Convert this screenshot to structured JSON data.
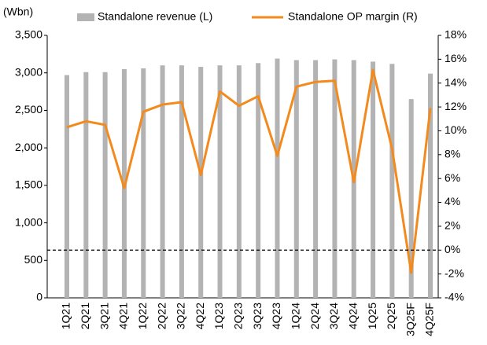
{
  "chart_data": {
    "type": "bar_line",
    "unit_label": "(Wbn)",
    "categories": [
      "1Q21",
      "2Q21",
      "3Q21",
      "4Q21",
      "1Q22",
      "2Q22",
      "3Q22",
      "4Q22",
      "1Q23",
      "2Q23",
      "3Q23",
      "4Q23",
      "1Q24",
      "2Q24",
      "3Q24",
      "4Q24",
      "1Q25",
      "2Q25",
      "3Q25F",
      "4Q25F"
    ],
    "series": [
      {
        "name": "Standalone revenue (L)",
        "type": "bar",
        "color": "#b3b3b3",
        "axis": "y",
        "values": [
          2970,
          3010,
          3010,
          3050,
          3060,
          3100,
          3100,
          3080,
          3100,
          3100,
          3130,
          3190,
          3170,
          3170,
          3180,
          3170,
          3150,
          3120,
          2650,
          2990
        ]
      },
      {
        "name": "Standalone OP margin (R)",
        "type": "line",
        "color": "#f28a1e",
        "axis": "y2",
        "values": [
          10.3,
          10.8,
          10.5,
          5.2,
          11.6,
          12.2,
          12.4,
          6.3,
          13.3,
          12.1,
          12.9,
          7.9,
          13.7,
          14.1,
          14.2,
          5.7,
          15.1,
          8.5,
          -1.9,
          11.9
        ]
      }
    ],
    "ylim": [
      0,
      3500
    ],
    "yticks": [
      0,
      500,
      {
        "value": 1000,
        "label": "1,000"
      },
      {
        "value": 1500,
        "label": "1,500"
      },
      {
        "value": 2000,
        "label": "2,000"
      },
      {
        "value": 2500,
        "label": "2,500"
      },
      {
        "value": 3000,
        "label": "3,000"
      },
      {
        "value": 3500,
        "label": "3,500"
      }
    ],
    "y2lim": [
      -4,
      18
    ],
    "y2ticks": [
      {
        "value": -4,
        "label": "-4%"
      },
      {
        "value": -2,
        "label": "-2%"
      },
      {
        "value": 0,
        "label": "0%"
      },
      {
        "value": 2,
        "label": "2%"
      },
      {
        "value": 4,
        "label": "4%"
      },
      {
        "value": 6,
        "label": "6%"
      },
      {
        "value": 8,
        "label": "8%"
      },
      {
        "value": 10,
        "label": "10%"
      },
      {
        "value": 12,
        "label": "12%"
      },
      {
        "value": 14,
        "label": "14%"
      },
      {
        "value": 16,
        "label": "16%"
      },
      {
        "value": 18,
        "label": "18%"
      }
    ],
    "reference_line": {
      "value": 0,
      "axis": "y2"
    }
  }
}
